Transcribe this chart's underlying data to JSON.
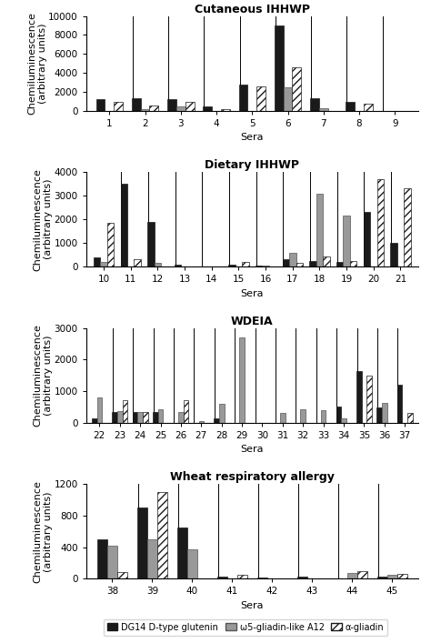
{
  "panels": [
    {
      "title": "Cutaneous IHHWP",
      "xlabel": "Sera",
      "ylabel": "Chemiluminescence\n(arbitrary units)",
      "ylim": [
        0,
        10000
      ],
      "yticks": [
        0,
        2000,
        4000,
        6000,
        8000,
        10000
      ],
      "sera": [
        1,
        2,
        3,
        4,
        5,
        6,
        7,
        8,
        9
      ],
      "black": [
        1200,
        1300,
        1200,
        400,
        2800,
        9000,
        1300,
        900,
        0
      ],
      "gray": [
        0,
        200,
        400,
        0,
        0,
        2500,
        300,
        0,
        0
      ],
      "hatch": [
        900,
        500,
        900,
        200,
        2600,
        4600,
        0,
        700,
        0
      ]
    },
    {
      "title": "Dietary IHHWP",
      "xlabel": "Sera",
      "ylabel": "Chemiluminescence\n(arbitrary units)",
      "ylim": [
        0,
        4000
      ],
      "yticks": [
        0,
        1000,
        2000,
        3000,
        4000
      ],
      "sera": [
        10,
        11,
        12,
        13,
        14,
        15,
        16,
        17,
        18,
        19,
        20,
        21
      ],
      "black": [
        400,
        3500,
        1900,
        100,
        0,
        100,
        50,
        300,
        250,
        200,
        2300,
        1000
      ],
      "gray": [
        200,
        0,
        150,
        0,
        0,
        0,
        50,
        600,
        3100,
        2150,
        0,
        0
      ],
      "hatch": [
        1850,
        300,
        0,
        0,
        0,
        200,
        0,
        150,
        450,
        250,
        3700,
        3300
      ]
    },
    {
      "title": "WDEIA",
      "xlabel": "Sera",
      "ylabel": "Chemiluminescence\n(arbitrary units)",
      "ylim": [
        0,
        3000
      ],
      "yticks": [
        0,
        1000,
        2000,
        3000
      ],
      "sera": [
        22,
        23,
        24,
        25,
        26,
        27,
        28,
        29,
        30,
        31,
        32,
        33,
        34,
        35,
        36,
        37
      ],
      "black": [
        150,
        330,
        330,
        330,
        0,
        0,
        150,
        0,
        0,
        0,
        0,
        0,
        500,
        1650,
        480,
        1200
      ],
      "gray": [
        800,
        380,
        350,
        420,
        330,
        50,
        600,
        2700,
        0,
        320,
        430,
        390,
        130,
        0,
        620,
        0
      ],
      "hatch": [
        0,
        700,
        350,
        0,
        700,
        0,
        0,
        0,
        0,
        0,
        0,
        0,
        0,
        1500,
        0,
        320
      ]
    },
    {
      "title": "Wheat respiratory allergy",
      "xlabel": "Sera",
      "ylabel": "Chemiluminescence\n(arbitrary units)",
      "ylim": [
        0,
        1200
      ],
      "yticks": [
        0,
        400,
        800,
        1200
      ],
      "sera": [
        38,
        39,
        40,
        41,
        42,
        43,
        44,
        45
      ],
      "black": [
        500,
        900,
        650,
        30,
        20,
        30,
        0,
        30
      ],
      "gray": [
        420,
        500,
        370,
        0,
        0,
        0,
        70,
        50
      ],
      "hatch": [
        80,
        1100,
        0,
        50,
        0,
        0,
        100,
        60
      ]
    }
  ],
  "legend_labels": [
    "DG14 D-type glutenin",
    "ω5-gliadin-like A12",
    "α-gliadin"
  ],
  "colors": {
    "black": "#1a1a1a",
    "gray": "#999999",
    "hatch_face": "#ffffff",
    "hatch_edge": "#1a1a1a"
  },
  "bar_width": 0.25,
  "title_fontsize": 9,
  "axis_fontsize": 8,
  "tick_fontsize": 7.5
}
